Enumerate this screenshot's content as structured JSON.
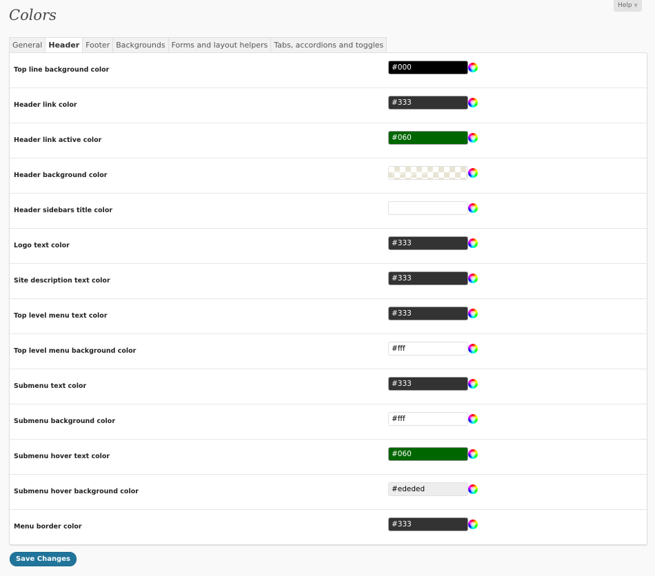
{
  "help_label": "Help",
  "title": "Colors",
  "tabs": [
    {
      "label": "General"
    },
    {
      "label": "Header",
      "active": true
    },
    {
      "label": "Footer"
    },
    {
      "label": "Backgrounds"
    },
    {
      "label": "Forms and layout helpers"
    },
    {
      "label": "Tabs, accordions and toggles"
    }
  ],
  "rows": [
    {
      "label": "Top line background color",
      "value": "#000",
      "bg": "#000000",
      "fg": "#ffffff"
    },
    {
      "label": "Header link color",
      "value": "#333",
      "bg": "#333333",
      "fg": "#ffffff"
    },
    {
      "label": "Header link active color",
      "value": "#060",
      "bg": "#006600",
      "fg": "#ffffff"
    },
    {
      "label": "Header background color",
      "value": "transparent",
      "bg": "transparent",
      "fg": "#ffffff"
    },
    {
      "label": "Header sidebars title color",
      "value": "",
      "bg": "#ffffff",
      "fg": "#333333"
    },
    {
      "label": "Logo text color",
      "value": "#333",
      "bg": "#333333",
      "fg": "#ffffff"
    },
    {
      "label": "Site description text color",
      "value": "#333",
      "bg": "#333333",
      "fg": "#ffffff"
    },
    {
      "label": "Top level menu text color",
      "value": "#333",
      "bg": "#333333",
      "fg": "#ffffff"
    },
    {
      "label": "Top level menu background color",
      "value": "#fff",
      "bg": "#ffffff",
      "fg": "#000000"
    },
    {
      "label": "Submenu text color",
      "value": "#333",
      "bg": "#333333",
      "fg": "#ffffff"
    },
    {
      "label": "Submenu background color",
      "value": "#fff",
      "bg": "#ffffff",
      "fg": "#000000"
    },
    {
      "label": "Submenu hover text color",
      "value": "#060",
      "bg": "#006600",
      "fg": "#ffffff"
    },
    {
      "label": "Submenu hover background color",
      "value": "#ededed",
      "bg": "#ededed",
      "fg": "#000000"
    },
    {
      "label": "Menu border color",
      "value": "#333",
      "bg": "#333333",
      "fg": "#ffffff"
    }
  ],
  "save_label": "Save Changes",
  "accent": "#21759b"
}
